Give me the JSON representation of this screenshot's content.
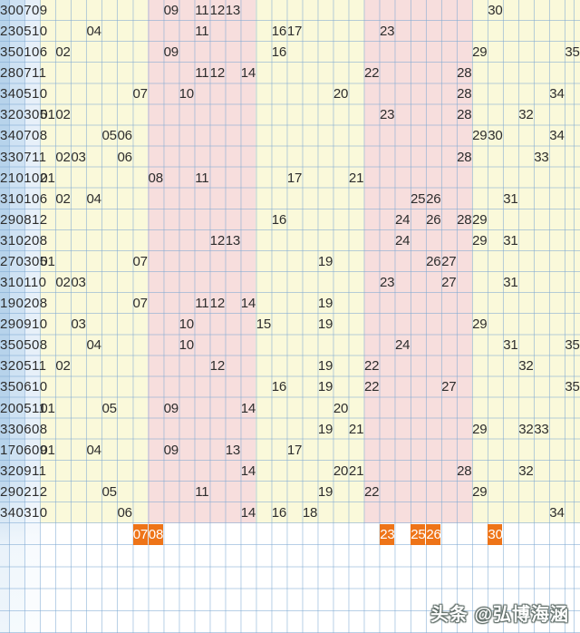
{
  "chart_data": {
    "type": "table",
    "description": "Lottery number trend chart: each row marks the drawn numbers in value columns 01-35; left blue strip shows cut-off row labels (last winning number + two back-zone numbers).",
    "columns_range": [
      1,
      35
    ],
    "bands": [
      {
        "cols": "1-7",
        "color_key": "yellow_band"
      },
      {
        "cols": "8-14",
        "color_key": "pink_band"
      },
      {
        "cols": "15-21",
        "color_key": "yellow_band"
      },
      {
        "cols": "22-28",
        "color_key": "pink_band"
      },
      {
        "cols": "29-35",
        "color_key": "yellow_band"
      }
    ],
    "rows": [
      {
        "label": "300709",
        "numbers": [
          "09",
          "11",
          "12",
          "13",
          "30"
        ]
      },
      {
        "label": "230510",
        "numbers": [
          "04",
          "11",
          "16",
          "17",
          "23"
        ]
      },
      {
        "label": "350106",
        "numbers": [
          "02",
          "09",
          "16",
          "29",
          "35"
        ]
      },
      {
        "label": "280711",
        "numbers": [
          "11",
          "12",
          "14",
          "22",
          "28"
        ]
      },
      {
        "label": "340510",
        "numbers": [
          "07",
          "10",
          "20",
          "28",
          "34"
        ]
      },
      {
        "label": "320305",
        "numbers": [
          "01",
          "02",
          "23",
          "28",
          "32"
        ]
      },
      {
        "label": "340708",
        "numbers": [
          "05",
          "06",
          "29",
          "30",
          "34"
        ]
      },
      {
        "label": "330711",
        "numbers": [
          "02",
          "03",
          "06",
          "28",
          "33"
        ]
      },
      {
        "label": "210102",
        "numbers": [
          "01",
          "08",
          "11",
          "17",
          "21"
        ]
      },
      {
        "label": "310106",
        "numbers": [
          "02",
          "04",
          "25",
          "26",
          "31"
        ]
      },
      {
        "label": "290812",
        "numbers": [
          "16",
          "24",
          "26",
          "28",
          "29"
        ]
      },
      {
        "label": "310208",
        "numbers": [
          "12",
          "13",
          "24",
          "29",
          "31"
        ]
      },
      {
        "label": "270305",
        "numbers": [
          "01",
          "07",
          "19",
          "26",
          "27"
        ]
      },
      {
        "label": "310110",
        "numbers": [
          "02",
          "03",
          "23",
          "27",
          "31"
        ]
      },
      {
        "label": "190208",
        "numbers": [
          "07",
          "11",
          "12",
          "14",
          "19"
        ]
      },
      {
        "label": "290910",
        "numbers": [
          "03",
          "10",
          "15",
          "19",
          "29"
        ]
      },
      {
        "label": "350508",
        "numbers": [
          "04",
          "10",
          "24",
          "31",
          "35"
        ]
      },
      {
        "label": "320511",
        "numbers": [
          "02",
          "12",
          "19",
          "22",
          "32"
        ]
      },
      {
        "label": "350610",
        "numbers": [
          "16",
          "19",
          "22",
          "27",
          "35"
        ]
      },
      {
        "label": "200511",
        "numbers": [
          "01",
          "05",
          "09",
          "14",
          "20"
        ]
      },
      {
        "label": "330608",
        "numbers": [
          "19",
          "21",
          "29",
          "32",
          "33"
        ]
      },
      {
        "label": "170609",
        "numbers": [
          "01",
          "04",
          "09",
          "13",
          "17"
        ]
      },
      {
        "label": "320911",
        "numbers": [
          "14",
          "20",
          "21",
          "28",
          "32"
        ]
      },
      {
        "label": "290212",
        "numbers": [
          "05",
          "11",
          "19",
          "22",
          "29"
        ]
      },
      {
        "label": "340310",
        "numbers": [
          "06",
          "14",
          "16",
          "18",
          "34"
        ]
      }
    ],
    "prediction_row": [
      "07",
      "08",
      "23",
      "25",
      "26",
      "30"
    ]
  },
  "watermark": {
    "text": "头条 @弘博海涵"
  },
  "colors": {
    "yellow_band": "#faf9da",
    "pink_band": "#f7dedd",
    "grid_line": "rgba(125,168,210,0.55)",
    "highlight_orange": "#ee7418",
    "text_color": "#2d2d2d",
    "strip_1": "#b7d3eb",
    "strip_2": "#cfe2f3",
    "strip_3": "#e7f0f9",
    "white_bg": "#ffffff"
  }
}
